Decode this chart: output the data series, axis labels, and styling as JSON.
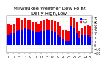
{
  "title": "Milwaukee Weather Dew Point",
  "subtitle": "Daily High/Low",
  "ylim": [
    -20,
    75
  ],
  "yticks": [
    -20,
    -10,
    0,
    10,
    20,
    30,
    40,
    50,
    60,
    70
  ],
  "bar_width": 0.85,
  "background_color": "#ffffff",
  "high_color": "#ff0000",
  "low_color": "#0000ff",
  "high_values": [
    55,
    52,
    54,
    68,
    70,
    65,
    68,
    65,
    63,
    60,
    58,
    55,
    62,
    64,
    67,
    66,
    65,
    62,
    58,
    50,
    40,
    38,
    36,
    72,
    70,
    60,
    35,
    45,
    50,
    52,
    48
  ],
  "low_values": [
    28,
    30,
    31,
    35,
    40,
    40,
    42,
    41,
    38,
    36,
    34,
    32,
    35,
    36,
    38,
    37,
    35,
    33,
    28,
    22,
    15,
    12,
    10,
    48,
    45,
    30,
    18,
    25,
    28,
    28,
    22
  ],
  "vline_pos": 22.5,
  "n_bars": 31,
  "xlabels_pos": [
    0,
    2,
    4,
    6,
    8,
    10,
    12,
    14,
    16,
    18,
    20,
    22,
    24,
    26,
    28,
    30
  ],
  "xlabels_txt": [
    "1",
    "3",
    "5",
    "7",
    "9",
    "11",
    "13",
    "15",
    "17",
    "19",
    "21",
    "23",
    "25",
    "27",
    "29",
    "31"
  ],
  "title_fontsize": 5,
  "tick_fontsize": 3.5,
  "legend_fontsize": 3,
  "legend_dot_blue": "#0000ff",
  "legend_dot_red": "#ff0000",
  "vline_color": "#aaaaaa",
  "grid_color": "#dddddd"
}
